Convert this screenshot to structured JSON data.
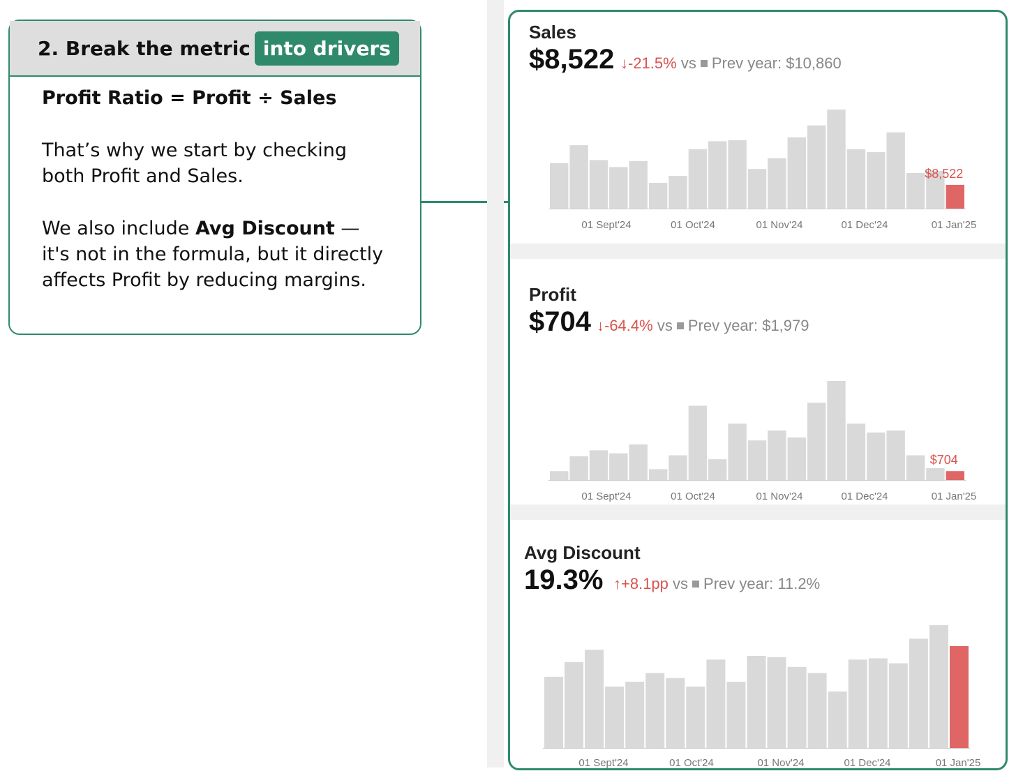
{
  "callout": {
    "step_text": "2. Break the metric",
    "step_highlight": "into drivers",
    "formula": "Profit Ratio = Profit ÷ Sales",
    "para1": "That’s why we start by checking both Profit and Sales.",
    "para2_a": "We also include ",
    "para2_bold": "Avg Discount",
    "para2_b": " — it's not in the formula, but it directly affects Profit by reducing margins."
  },
  "colors": {
    "accent": "#2f8a6c",
    "bar": "#d9d9d9",
    "highlight_bar": "#e06666",
    "delta": "#d9534f"
  },
  "sales": {
    "label": "Sales",
    "value": "$8,522",
    "delta": "↓-21.5%",
    "vs": "vs",
    "prev": "Prev year: $10,860"
  },
  "profit": {
    "label": "Profit",
    "value": "$704",
    "delta": "↓-64.4%",
    "vs": "vs",
    "prev": "Prev year: $1,979"
  },
  "discount": {
    "label": "Avg Discount",
    "value": "19.3%",
    "delta": "↑+8.1pp",
    "vs": "vs",
    "prev": "Prev year: 11.2%"
  },
  "chart_data": [
    {
      "type": "bar",
      "name": "Sales",
      "x_ticks": [
        "01 Sept'24",
        "01 Oct'24",
        "01 Nov'24",
        "01 Dec'24",
        "01 Jan'25"
      ],
      "values": [
        46,
        64,
        49,
        42,
        48,
        26,
        33,
        60,
        68,
        69,
        40,
        51,
        72,
        84,
        100,
        60,
        57,
        77,
        36,
        38,
        24
      ],
      "last_label": "$8,522"
    },
    {
      "type": "bar",
      "name": "Profit",
      "x_ticks": [
        "01 Sept'24",
        "01 Oct'24",
        "01 Nov'24",
        "01 Dec'24",
        "01 Jan'25"
      ],
      "values": [
        9,
        24,
        30,
        27,
        36,
        11,
        25,
        75,
        21,
        57,
        40,
        50,
        43,
        78,
        100,
        57,
        48,
        50,
        25,
        12,
        9
      ],
      "last_label": "$704"
    },
    {
      "type": "bar",
      "name": "Avg Discount",
      "x_ticks": [
        "01 Sept'24",
        "01 Oct'24",
        "01 Nov'24",
        "01 Dec'24",
        "01 Jan'25"
      ],
      "values": [
        58,
        70,
        80,
        50,
        54,
        61,
        57,
        50,
        72,
        54,
        75,
        74,
        66,
        61,
        46,
        72,
        73,
        69,
        89,
        100,
        83
      ],
      "last_label": ""
    }
  ]
}
